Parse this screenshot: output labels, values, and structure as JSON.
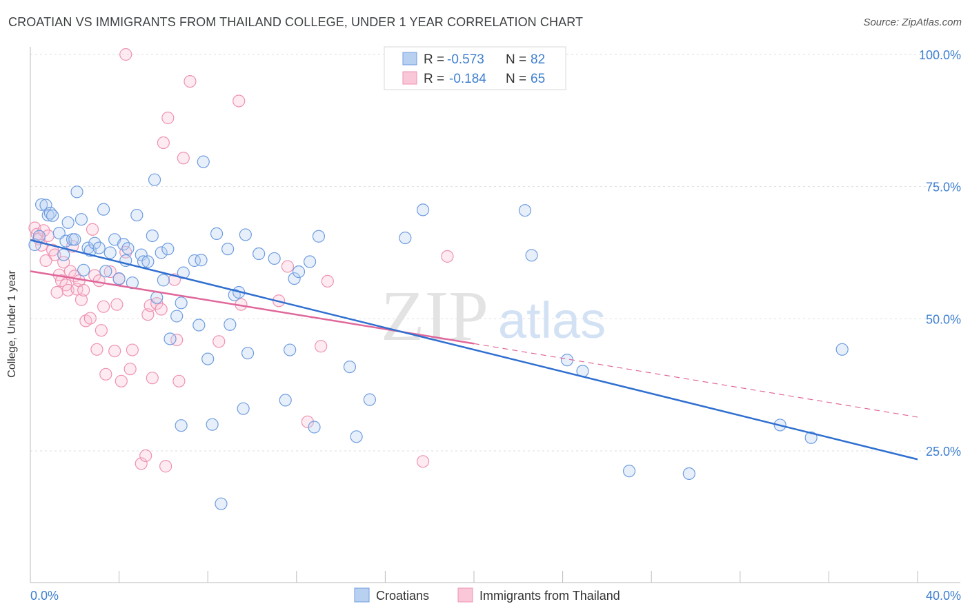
{
  "title": "CROATIAN VS IMMIGRANTS FROM THAILAND COLLEGE, UNDER 1 YEAR CORRELATION CHART",
  "source": "Source: ZipAtlas.com",
  "watermark": {
    "zip": "ZIP",
    "atlas": "atlas"
  },
  "colors": {
    "blue": "#6f9de0",
    "blue_fill": "#b9d1f1",
    "blue_line": "#2f6fd0",
    "pink": "#ef92b2",
    "pink_fill": "#f9c7d8",
    "pink_line": "#e0679a",
    "axis_text": "#3d7fd0"
  },
  "legend": {
    "rows": [
      {
        "r_label": "R =",
        "r_value": "-0.573",
        "n_label": "N =",
        "n_value": "82"
      },
      {
        "r_label": "R =",
        "r_value": "-0.184",
        "n_label": "N =",
        "n_value": "65"
      }
    ]
  },
  "bottom_legend": {
    "croatians": "Croatians",
    "thailand": "Immigrants from Thailand"
  },
  "chart_data": {
    "type": "scatter",
    "title": "CROATIAN VS IMMIGRANTS FROM THAILAND COLLEGE, UNDER 1 YEAR CORRELATION CHART",
    "xlabel": "",
    "ylabel": "College, Under 1 year",
    "xlim": [
      0,
      40
    ],
    "ylim": [
      0,
      105
    ],
    "x_tick_labels": [
      "0.0%",
      "40.0%"
    ],
    "y_tick_labels": [
      "25.0%",
      "50.0%",
      "75.0%",
      "100.0%"
    ],
    "y_ticks": [
      25,
      50,
      75,
      100
    ],
    "grid": true,
    "legend_position": "top-center",
    "series": [
      {
        "name": "Croatians",
        "r": -0.573,
        "n": 82,
        "trend": {
          "x0": 0,
          "y0": 64.9,
          "x1": 40,
          "y1": 23.4
        },
        "points": [
          [
            0.2,
            64.0
          ],
          [
            0.4,
            65.6
          ],
          [
            0.5,
            71.6
          ],
          [
            0.7,
            71.5
          ],
          [
            0.8,
            69.6
          ],
          [
            0.9,
            70.0
          ],
          [
            1.0,
            69.5
          ],
          [
            1.3,
            66.2
          ],
          [
            1.5,
            62.1
          ],
          [
            1.6,
            64.7
          ],
          [
            1.7,
            68.2
          ],
          [
            1.9,
            65.0
          ],
          [
            2.1,
            74.0
          ],
          [
            2.3,
            68.8
          ],
          [
            2.4,
            59.2
          ],
          [
            2.6,
            63.4
          ],
          [
            2.7,
            62.9
          ],
          [
            2.9,
            64.3
          ],
          [
            3.1,
            63.4
          ],
          [
            3.3,
            70.7
          ],
          [
            3.4,
            59.0
          ],
          [
            3.6,
            62.5
          ],
          [
            3.8,
            65.0
          ],
          [
            4.0,
            57.6
          ],
          [
            4.2,
            64.1
          ],
          [
            4.3,
            61.0
          ],
          [
            4.4,
            63.3
          ],
          [
            4.6,
            56.8
          ],
          [
            4.8,
            69.6
          ],
          [
            5.0,
            62.1
          ],
          [
            5.1,
            60.8
          ],
          [
            5.3,
            60.8
          ],
          [
            5.5,
            65.7
          ],
          [
            5.6,
            76.3
          ],
          [
            5.7,
            54.0
          ],
          [
            5.9,
            62.5
          ],
          [
            6.0,
            57.3
          ],
          [
            6.2,
            63.2
          ],
          [
            6.3,
            46.2
          ],
          [
            6.6,
            50.5
          ],
          [
            6.8,
            53.0
          ],
          [
            6.9,
            58.7
          ],
          [
            7.4,
            61.0
          ],
          [
            7.6,
            48.8
          ],
          [
            7.7,
            61.1
          ],
          [
            7.8,
            79.7
          ],
          [
            8.0,
            42.4
          ],
          [
            8.4,
            66.1
          ],
          [
            8.9,
            63.2
          ],
          [
            9.0,
            48.9
          ],
          [
            9.2,
            54.5
          ],
          [
            9.4,
            55.0
          ],
          [
            9.6,
            33.0
          ],
          [
            9.7,
            65.9
          ],
          [
            9.8,
            43.5
          ],
          [
            10.3,
            62.3
          ],
          [
            11.0,
            61.4
          ],
          [
            11.5,
            34.6
          ],
          [
            11.7,
            44.1
          ],
          [
            11.9,
            57.6
          ],
          [
            12.1,
            58.9
          ],
          [
            12.6,
            60.8
          ],
          [
            12.8,
            29.5
          ],
          [
            13.0,
            65.6
          ],
          [
            14.4,
            40.9
          ],
          [
            14.7,
            27.7
          ],
          [
            15.3,
            34.7
          ],
          [
            16.9,
            65.3
          ],
          [
            17.7,
            70.6
          ],
          [
            22.3,
            70.5
          ],
          [
            22.6,
            62.0
          ],
          [
            24.2,
            42.2
          ],
          [
            24.9,
            40.1
          ],
          [
            27.0,
            21.2
          ],
          [
            29.7,
            20.7
          ],
          [
            33.8,
            29.9
          ],
          [
            35.2,
            27.5
          ],
          [
            36.6,
            44.2
          ],
          [
            6.8,
            29.8
          ],
          [
            8.2,
            30.0
          ],
          [
            8.6,
            15.0
          ],
          [
            2.0,
            65.0
          ]
        ]
      },
      {
        "name": "Immigrants from Thailand",
        "r": -0.184,
        "n": 65,
        "trend": {
          "x0": 0,
          "y0": 59.0,
          "x1": 20,
          "y1": 45.3,
          "dash_x1": 40,
          "dash_y1": 31.4
        },
        "points": [
          [
            0.2,
            67.2
          ],
          [
            0.3,
            66.0
          ],
          [
            0.4,
            65.1
          ],
          [
            0.5,
            63.9
          ],
          [
            0.6,
            66.7
          ],
          [
            0.8,
            65.7
          ],
          [
            1.0,
            63.0
          ],
          [
            1.1,
            62.1
          ],
          [
            1.3,
            58.3
          ],
          [
            1.4,
            57.2
          ],
          [
            1.5,
            60.7
          ],
          [
            1.6,
            56.4
          ],
          [
            1.7,
            55.4
          ],
          [
            1.8,
            59.0
          ],
          [
            1.9,
            63.7
          ],
          [
            2.0,
            58.1
          ],
          [
            2.1,
            55.6
          ],
          [
            2.2,
            57.2
          ],
          [
            2.3,
            53.6
          ],
          [
            2.4,
            55.4
          ],
          [
            2.5,
            49.6
          ],
          [
            2.7,
            50.1
          ],
          [
            2.8,
            66.9
          ],
          [
            2.9,
            58.2
          ],
          [
            3.0,
            44.2
          ],
          [
            3.1,
            57.2
          ],
          [
            3.2,
            47.8
          ],
          [
            3.3,
            52.3
          ],
          [
            3.4,
            39.5
          ],
          [
            3.6,
            58.9
          ],
          [
            3.8,
            43.9
          ],
          [
            3.9,
            52.7
          ],
          [
            4.0,
            57.5
          ],
          [
            4.1,
            38.2
          ],
          [
            4.3,
            62.6
          ],
          [
            4.5,
            40.5
          ],
          [
            4.6,
            44.1
          ],
          [
            5.0,
            22.6
          ],
          [
            5.2,
            24.1
          ],
          [
            5.3,
            50.8
          ],
          [
            5.4,
            52.5
          ],
          [
            5.5,
            38.8
          ],
          [
            5.7,
            52.9
          ],
          [
            5.9,
            51.8
          ],
          [
            6.0,
            83.3
          ],
          [
            6.1,
            22.1
          ],
          [
            6.2,
            88.0
          ],
          [
            6.5,
            57.4
          ],
          [
            6.6,
            46.0
          ],
          [
            6.7,
            38.2
          ],
          [
            6.9,
            80.4
          ],
          [
            7.2,
            94.9
          ],
          [
            8.5,
            45.7
          ],
          [
            9.4,
            91.2
          ],
          [
            9.5,
            52.7
          ],
          [
            11.2,
            53.4
          ],
          [
            11.6,
            59.9
          ],
          [
            12.5,
            30.5
          ],
          [
            13.1,
            44.8
          ],
          [
            13.4,
            57.1
          ],
          [
            17.7,
            23.0
          ],
          [
            18.8,
            61.8
          ],
          [
            4.3,
            100.0
          ],
          [
            0.7,
            61.0
          ],
          [
            1.2,
            55.0
          ]
        ]
      }
    ]
  }
}
